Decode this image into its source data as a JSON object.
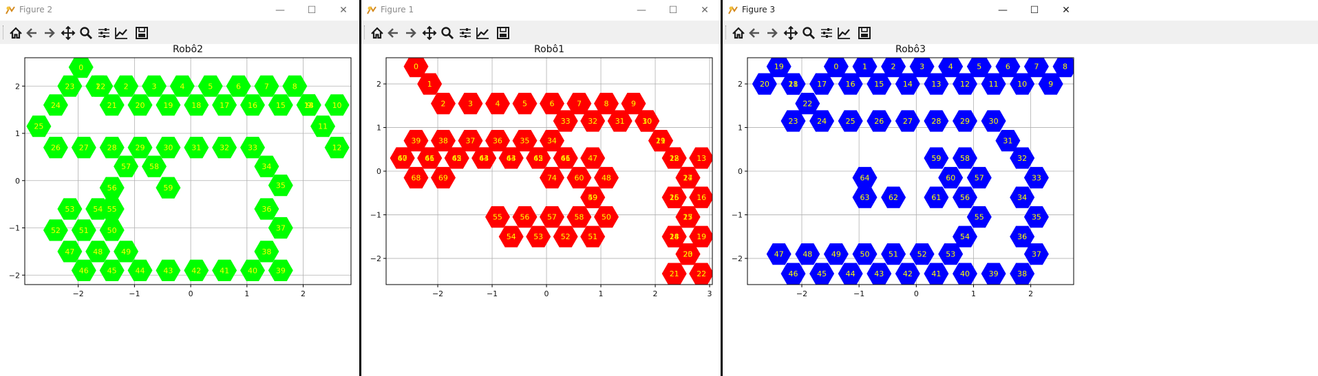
{
  "windows": [
    {
      "key": "w2",
      "title": "Figure 2"
    },
    {
      "key": "w1",
      "title": "Figure 1"
    },
    {
      "key": "w3",
      "title": "Figure 3"
    }
  ],
  "colors": {
    "robot2": "#00ff00",
    "robot1": "#ff0000",
    "robot3": "#0000ff",
    "labels": "#ffff00"
  },
  "chart_data": [
    {
      "type": "scatter",
      "title": "Robô2",
      "marker": "hexagon",
      "color": "#00ff00",
      "xlim": [
        -2.95,
        2.85
      ],
      "ylim": [
        -2.2,
        2.6
      ],
      "xticks": [
        -2,
        -1,
        0,
        1,
        2
      ],
      "yticks": [
        -2,
        -1,
        0,
        1,
        2
      ],
      "grid": true,
      "points": [
        {
          "label": "0",
          "x": -1.95,
          "y": 2.4
        },
        {
          "label": "1",
          "x": -1.65,
          "y": 2.0
        },
        {
          "label": "2",
          "x": -1.15,
          "y": 2.0
        },
        {
          "label": "3",
          "x": -0.65,
          "y": 2.0
        },
        {
          "label": "4",
          "x": -0.15,
          "y": 2.0
        },
        {
          "label": "5",
          "x": 0.35,
          "y": 2.0
        },
        {
          "label": "6",
          "x": 0.85,
          "y": 2.0
        },
        {
          "label": "7",
          "x": 1.35,
          "y": 2.0
        },
        {
          "label": "8",
          "x": 1.85,
          "y": 2.0
        },
        {
          "label": "9",
          "x": 2.1,
          "y": 1.6
        },
        {
          "label": "10",
          "x": 2.6,
          "y": 1.6
        },
        {
          "label": "11",
          "x": 2.35,
          "y": 1.15
        },
        {
          "label": "12",
          "x": 2.6,
          "y": 0.7
        },
        {
          "label": "13",
          "x": 2.1,
          "y": 1.6
        },
        {
          "label": "14",
          "x": 2.1,
          "y": 1.6
        },
        {
          "label": "15",
          "x": 1.6,
          "y": 1.6
        },
        {
          "label": "16",
          "x": 1.1,
          "y": 1.6
        },
        {
          "label": "17",
          "x": 0.6,
          "y": 1.6
        },
        {
          "label": "18",
          "x": 0.1,
          "y": 1.6
        },
        {
          "label": "19",
          "x": -0.4,
          "y": 1.6
        },
        {
          "label": "20",
          "x": -0.9,
          "y": 1.6
        },
        {
          "label": "21",
          "x": -1.4,
          "y": 1.6
        },
        {
          "label": "22",
          "x": -1.6,
          "y": 2.0
        },
        {
          "label": "23",
          "x": -2.15,
          "y": 2.0
        },
        {
          "label": "24",
          "x": -2.4,
          "y": 1.6
        },
        {
          "label": "25",
          "x": -2.7,
          "y": 1.15
        },
        {
          "label": "26",
          "x": -2.4,
          "y": 0.7
        },
        {
          "label": "27",
          "x": -1.9,
          "y": 0.7
        },
        {
          "label": "28",
          "x": -1.4,
          "y": 0.7
        },
        {
          "label": "29",
          "x": -0.9,
          "y": 0.7
        },
        {
          "label": "30",
          "x": -0.4,
          "y": 0.7
        },
        {
          "label": "31",
          "x": 0.1,
          "y": 0.7
        },
        {
          "label": "32",
          "x": 0.6,
          "y": 0.7
        },
        {
          "label": "33",
          "x": 1.1,
          "y": 0.7
        },
        {
          "label": "34",
          "x": 1.35,
          "y": 0.3
        },
        {
          "label": "35",
          "x": 1.6,
          "y": -0.1
        },
        {
          "label": "36",
          "x": 1.35,
          "y": -0.6
        },
        {
          "label": "37",
          "x": 1.6,
          "y": -1.0
        },
        {
          "label": "38",
          "x": 1.35,
          "y": -1.5
        },
        {
          "label": "39",
          "x": 1.6,
          "y": -1.9
        },
        {
          "label": "40",
          "x": 1.1,
          "y": -1.9
        },
        {
          "label": "41",
          "x": 0.6,
          "y": -1.9
        },
        {
          "label": "42",
          "x": 0.1,
          "y": -1.9
        },
        {
          "label": "43",
          "x": -0.4,
          "y": -1.9
        },
        {
          "label": "44",
          "x": -0.9,
          "y": -1.9
        },
        {
          "label": "45",
          "x": -1.4,
          "y": -1.9
        },
        {
          "label": "46",
          "x": -1.9,
          "y": -1.9
        },
        {
          "label": "47",
          "x": -2.15,
          "y": -1.5
        },
        {
          "label": "48",
          "x": -1.65,
          "y": -1.5
        },
        {
          "label": "49",
          "x": -1.15,
          "y": -1.5
        },
        {
          "label": "50",
          "x": -1.4,
          "y": -1.05
        },
        {
          "label": "51",
          "x": -1.9,
          "y": -1.05
        },
        {
          "label": "52",
          "x": -2.4,
          "y": -1.05
        },
        {
          "label": "53",
          "x": -2.15,
          "y": -0.6
        },
        {
          "label": "54",
          "x": -1.65,
          "y": -0.6
        },
        {
          "label": "55",
          "x": -1.4,
          "y": -0.6
        },
        {
          "label": "56",
          "x": -1.4,
          "y": -0.15
        },
        {
          "label": "57",
          "x": -1.15,
          "y": 0.3
        },
        {
          "label": "58",
          "x": -0.65,
          "y": 0.3
        },
        {
          "label": "59",
          "x": -0.4,
          "y": -0.15
        }
      ]
    },
    {
      "type": "scatter",
      "title": "Robô1",
      "marker": "hexagon",
      "color": "#ff0000",
      "xlim": [
        -2.95,
        3.05
      ],
      "ylim": [
        -2.6,
        2.6
      ],
      "xticks": [
        -2,
        -1,
        0,
        1,
        2,
        3
      ],
      "yticks": [
        -2,
        -1,
        0,
        1,
        2
      ],
      "grid": true,
      "points": [
        {
          "label": "0",
          "x": -2.4,
          "y": 2.4
        },
        {
          "label": "1",
          "x": -2.15,
          "y": 2.0
        },
        {
          "label": "2",
          "x": -1.9,
          "y": 1.55
        },
        {
          "label": "3",
          "x": -1.4,
          "y": 1.55
        },
        {
          "label": "4",
          "x": -0.9,
          "y": 1.55
        },
        {
          "label": "5",
          "x": -0.4,
          "y": 1.55
        },
        {
          "label": "6",
          "x": 0.1,
          "y": 1.55
        },
        {
          "label": "7",
          "x": 0.6,
          "y": 1.55
        },
        {
          "label": "8",
          "x": 1.1,
          "y": 1.55
        },
        {
          "label": "9",
          "x": 1.6,
          "y": 1.55
        },
        {
          "label": "10",
          "x": 1.85,
          "y": 1.15
        },
        {
          "label": "11",
          "x": 2.1,
          "y": 0.7
        },
        {
          "label": "12",
          "x": 2.35,
          "y": 0.3
        },
        {
          "label": "13",
          "x": 2.85,
          "y": 0.3
        },
        {
          "label": "14",
          "x": 2.6,
          "y": -0.15
        },
        {
          "label": "15",
          "x": 2.35,
          "y": -0.6
        },
        {
          "label": "16",
          "x": 2.85,
          "y": -0.6
        },
        {
          "label": "17",
          "x": 2.6,
          "y": -1.05
        },
        {
          "label": "18",
          "x": 2.35,
          "y": -1.5
        },
        {
          "label": "19",
          "x": 2.85,
          "y": -1.5
        },
        {
          "label": "20",
          "x": 2.6,
          "y": -1.9
        },
        {
          "label": "21",
          "x": 2.35,
          "y": -2.35
        },
        {
          "label": "22",
          "x": 2.85,
          "y": -2.35
        },
        {
          "label": "23",
          "x": 2.6,
          "y": -1.9
        },
        {
          "label": "24",
          "x": 2.35,
          "y": -1.5
        },
        {
          "label": "25",
          "x": 2.6,
          "y": -1.05
        },
        {
          "label": "26",
          "x": 2.35,
          "y": -0.6
        },
        {
          "label": "27",
          "x": 2.6,
          "y": -0.15
        },
        {
          "label": "28",
          "x": 2.35,
          "y": 0.3
        },
        {
          "label": "29",
          "x": 2.1,
          "y": 0.7
        },
        {
          "label": "30",
          "x": 1.85,
          "y": 1.15
        },
        {
          "label": "31",
          "x": 1.35,
          "y": 1.15
        },
        {
          "label": "32",
          "x": 0.85,
          "y": 1.15
        },
        {
          "label": "33",
          "x": 0.35,
          "y": 1.15
        },
        {
          "label": "34",
          "x": 0.1,
          "y": 0.7
        },
        {
          "label": "35",
          "x": -0.4,
          "y": 0.7
        },
        {
          "label": "36",
          "x": -0.9,
          "y": 0.7
        },
        {
          "label": "37",
          "x": -1.4,
          "y": 0.7
        },
        {
          "label": "38",
          "x": -1.9,
          "y": 0.7
        },
        {
          "label": "39",
          "x": -2.4,
          "y": 0.7
        },
        {
          "label": "40",
          "x": -2.65,
          "y": 0.3
        },
        {
          "label": "41",
          "x": -2.15,
          "y": 0.3
        },
        {
          "label": "42",
          "x": -1.65,
          "y": 0.3
        },
        {
          "label": "43",
          "x": -1.15,
          "y": 0.3
        },
        {
          "label": "44",
          "x": -0.65,
          "y": 0.3
        },
        {
          "label": "45",
          "x": -0.15,
          "y": 0.3
        },
        {
          "label": "46",
          "x": 0.35,
          "y": 0.3
        },
        {
          "label": "47",
          "x": 0.85,
          "y": 0.3
        },
        {
          "label": "48",
          "x": 1.1,
          "y": -0.15
        },
        {
          "label": "49",
          "x": 0.85,
          "y": -0.6
        },
        {
          "label": "50",
          "x": 1.1,
          "y": -1.05
        },
        {
          "label": "51",
          "x": 0.85,
          "y": -1.5
        },
        {
          "label": "52",
          "x": 0.35,
          "y": -1.5
        },
        {
          "label": "53",
          "x": -0.15,
          "y": -1.5
        },
        {
          "label": "54",
          "x": -0.65,
          "y": -1.5
        },
        {
          "label": "55",
          "x": -0.9,
          "y": -1.05
        },
        {
          "label": "56",
          "x": -0.4,
          "y": -1.05
        },
        {
          "label": "57",
          "x": 0.1,
          "y": -1.05
        },
        {
          "label": "58",
          "x": 0.6,
          "y": -1.05
        },
        {
          "label": "59",
          "x": 0.85,
          "y": -0.6
        },
        {
          "label": "60",
          "x": 0.6,
          "y": -0.15
        },
        {
          "label": "61",
          "x": 0.35,
          "y": 0.3
        },
        {
          "label": "62",
          "x": -0.15,
          "y": 0.3
        },
        {
          "label": "63",
          "x": -0.65,
          "y": 0.3
        },
        {
          "label": "64",
          "x": -1.15,
          "y": 0.3
        },
        {
          "label": "65",
          "x": -1.65,
          "y": 0.3
        },
        {
          "label": "66",
          "x": -2.15,
          "y": 0.3
        },
        {
          "label": "67",
          "x": -2.65,
          "y": 0.3
        },
        {
          "label": "68",
          "x": -2.4,
          "y": -0.15
        },
        {
          "label": "69",
          "x": -1.9,
          "y": -0.15
        },
        {
          "label": "74",
          "x": 0.1,
          "y": -0.15
        }
      ]
    },
    {
      "type": "scatter",
      "title": "Robô3",
      "marker": "hexagon",
      "color": "#0000ff",
      "xlim": [
        -2.95,
        2.75
      ],
      "ylim": [
        -2.6,
        2.6
      ],
      "xticks": [
        -2,
        -1,
        0,
        1,
        2
      ],
      "yticks": [
        -2,
        -1,
        0,
        1,
        2
      ],
      "grid": true,
      "points": [
        {
          "label": "0",
          "x": -1.4,
          "y": 2.4
        },
        {
          "label": "1",
          "x": -0.9,
          "y": 2.4
        },
        {
          "label": "2",
          "x": -0.4,
          "y": 2.4
        },
        {
          "label": "3",
          "x": 0.1,
          "y": 2.4
        },
        {
          "label": "4",
          "x": 0.6,
          "y": 2.4
        },
        {
          "label": "5",
          "x": 1.1,
          "y": 2.4
        },
        {
          "label": "6",
          "x": 1.6,
          "y": 2.4
        },
        {
          "label": "7",
          "x": 2.1,
          "y": 2.4
        },
        {
          "label": "8",
          "x": 2.6,
          "y": 2.4
        },
        {
          "label": "9",
          "x": 2.35,
          "y": 2.0
        },
        {
          "label": "10",
          "x": 1.85,
          "y": 2.0
        },
        {
          "label": "11",
          "x": 1.35,
          "y": 2.0
        },
        {
          "label": "12",
          "x": 0.85,
          "y": 2.0
        },
        {
          "label": "13",
          "x": 0.35,
          "y": 2.0
        },
        {
          "label": "14",
          "x": -0.15,
          "y": 2.0
        },
        {
          "label": "15",
          "x": -0.65,
          "y": 2.0
        },
        {
          "label": "16",
          "x": -1.15,
          "y": 2.0
        },
        {
          "label": "17",
          "x": -1.65,
          "y": 2.0
        },
        {
          "label": "18",
          "x": -2.15,
          "y": 2.0
        },
        {
          "label": "19",
          "x": -2.4,
          "y": 2.4
        },
        {
          "label": "20",
          "x": -2.65,
          "y": 2.0
        },
        {
          "label": "21",
          "x": -2.15,
          "y": 2.0
        },
        {
          "label": "22",
          "x": -1.9,
          "y": 1.55
        },
        {
          "label": "23",
          "x": -2.15,
          "y": 1.15
        },
        {
          "label": "24",
          "x": -1.65,
          "y": 1.15
        },
        {
          "label": "25",
          "x": -1.15,
          "y": 1.15
        },
        {
          "label": "26",
          "x": -0.65,
          "y": 1.15
        },
        {
          "label": "27",
          "x": -0.15,
          "y": 1.15
        },
        {
          "label": "28",
          "x": 0.35,
          "y": 1.15
        },
        {
          "label": "29",
          "x": 0.85,
          "y": 1.15
        },
        {
          "label": "30",
          "x": 1.35,
          "y": 1.15
        },
        {
          "label": "31",
          "x": 1.6,
          "y": 0.7
        },
        {
          "label": "32",
          "x": 1.85,
          "y": 0.3
        },
        {
          "label": "33",
          "x": 2.1,
          "y": -0.15
        },
        {
          "label": "34",
          "x": 1.85,
          "y": -0.6
        },
        {
          "label": "35",
          "x": 2.1,
          "y": -1.05
        },
        {
          "label": "36",
          "x": 1.85,
          "y": -1.5
        },
        {
          "label": "37",
          "x": 2.1,
          "y": -1.9
        },
        {
          "label": "38",
          "x": 1.85,
          "y": -2.35
        },
        {
          "label": "39",
          "x": 1.35,
          "y": -2.35
        },
        {
          "label": "40",
          "x": 0.85,
          "y": -2.35
        },
        {
          "label": "41",
          "x": 0.35,
          "y": -2.35
        },
        {
          "label": "42",
          "x": -0.15,
          "y": -2.35
        },
        {
          "label": "43",
          "x": -0.65,
          "y": -2.35
        },
        {
          "label": "44",
          "x": -1.15,
          "y": -2.35
        },
        {
          "label": "45",
          "x": -1.65,
          "y": -2.35
        },
        {
          "label": "46",
          "x": -2.15,
          "y": -2.35
        },
        {
          "label": "47",
          "x": -2.4,
          "y": -1.9
        },
        {
          "label": "48",
          "x": -1.9,
          "y": -1.9
        },
        {
          "label": "49",
          "x": -1.4,
          "y": -1.9
        },
        {
          "label": "50",
          "x": -0.9,
          "y": -1.9
        },
        {
          "label": "51",
          "x": -0.4,
          "y": -1.9
        },
        {
          "label": "52",
          "x": 0.1,
          "y": -1.9
        },
        {
          "label": "53",
          "x": 0.6,
          "y": -1.9
        },
        {
          "label": "54",
          "x": 0.85,
          "y": -1.5
        },
        {
          "label": "55",
          "x": 1.1,
          "y": -1.05
        },
        {
          "label": "56",
          "x": 0.85,
          "y": -0.6
        },
        {
          "label": "57",
          "x": 1.1,
          "y": -0.15
        },
        {
          "label": "58",
          "x": 0.85,
          "y": 0.3
        },
        {
          "label": "59",
          "x": 0.35,
          "y": 0.3
        },
        {
          "label": "60",
          "x": 0.6,
          "y": -0.15
        },
        {
          "label": "61",
          "x": 0.35,
          "y": -0.6
        },
        {
          "label": "62",
          "x": -0.4,
          "y": -0.6
        },
        {
          "label": "63",
          "x": -0.9,
          "y": -0.6
        },
        {
          "label": "64",
          "x": -0.9,
          "y": -0.15
        }
      ]
    }
  ]
}
